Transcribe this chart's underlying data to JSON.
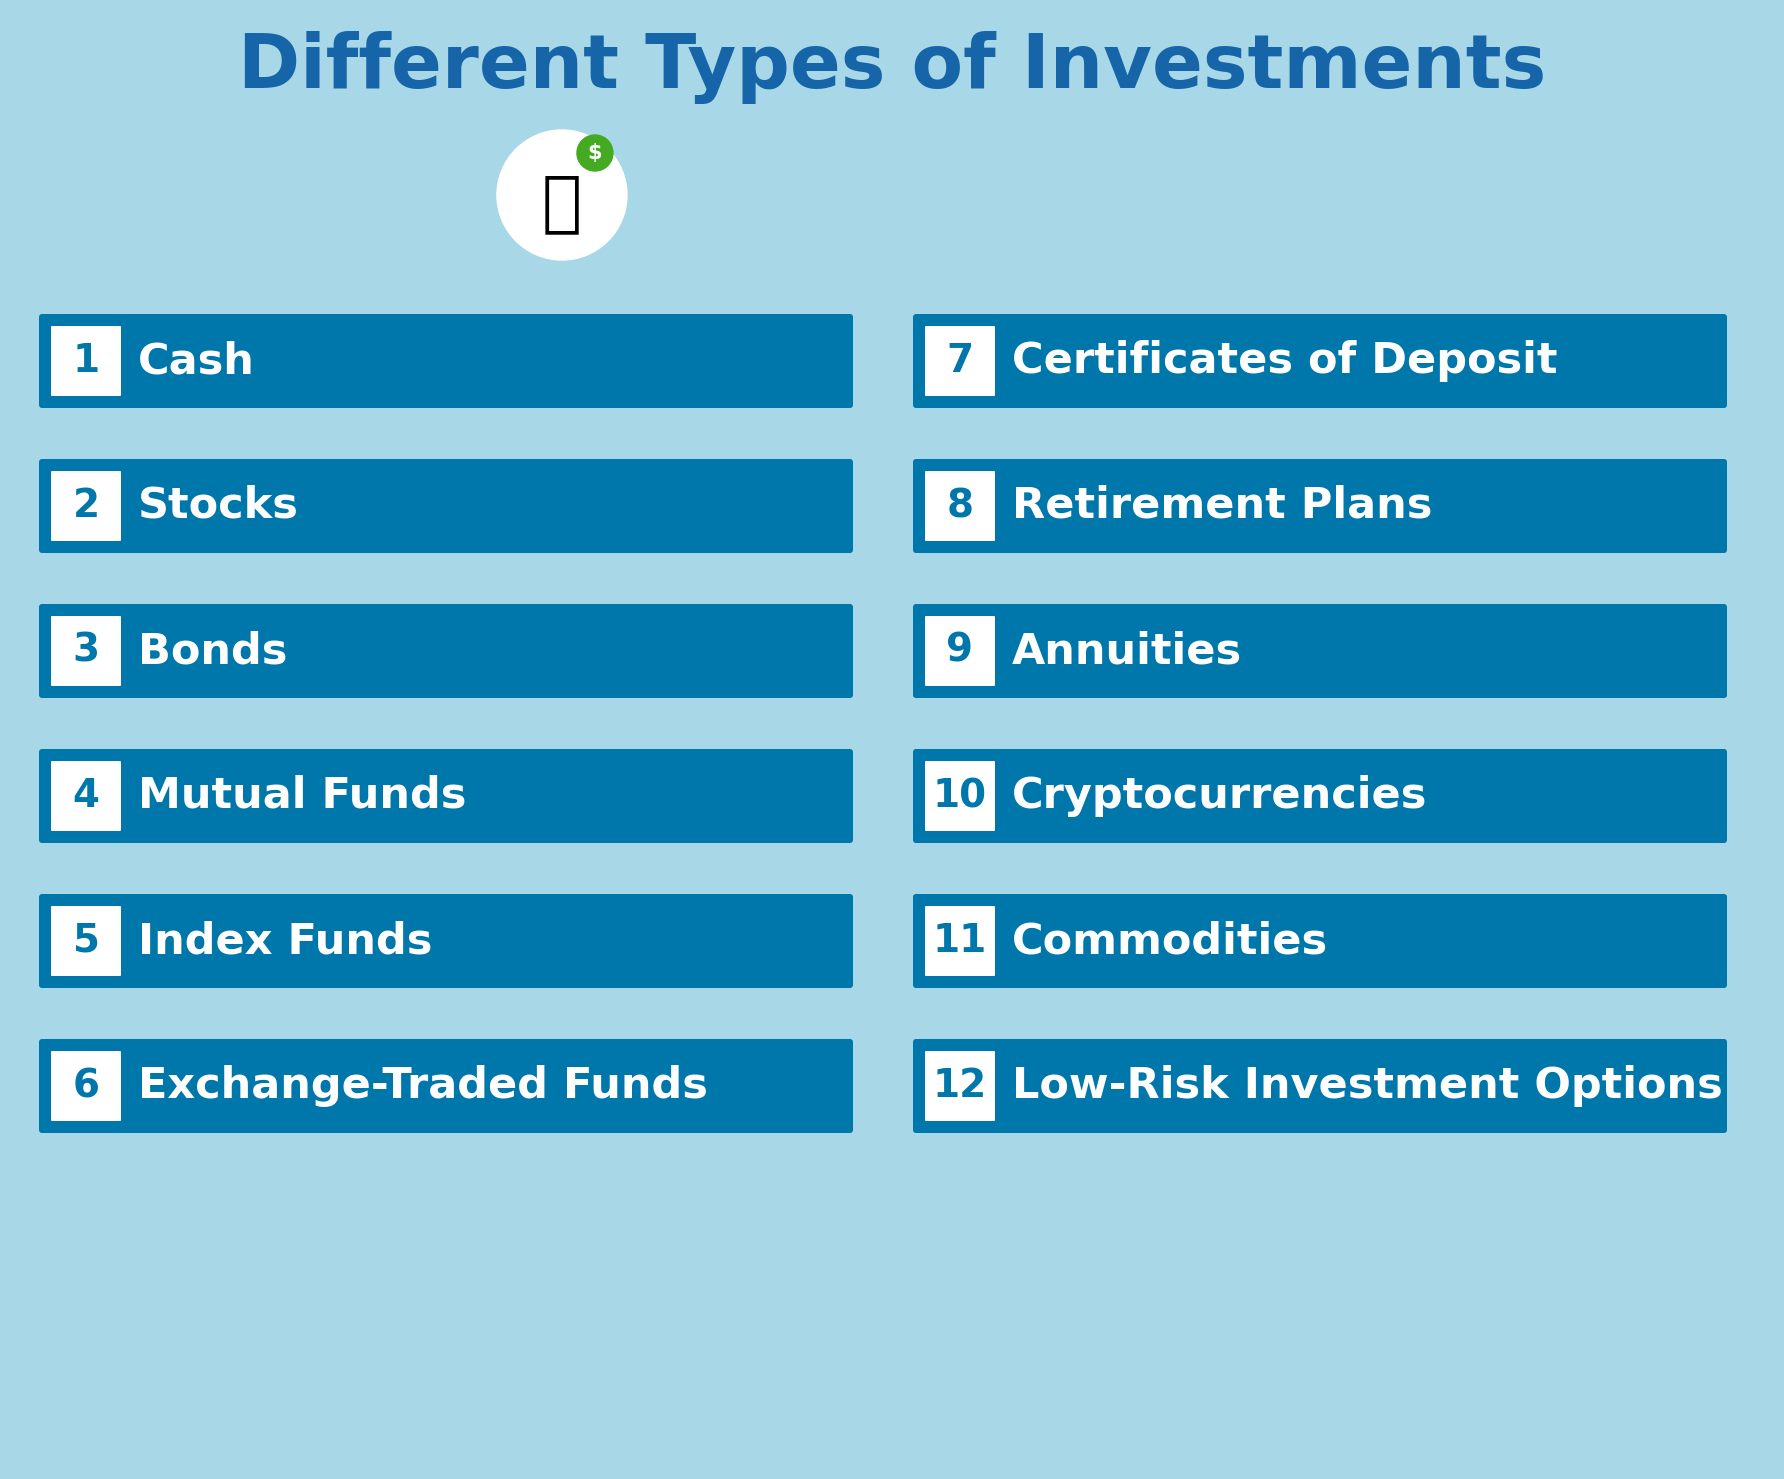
{
  "title": "Different Types of Investments",
  "title_color": "#1565A8",
  "background_color": "#A8D8E8",
  "bar_color": "#0077AA",
  "number_box_color": "#FFFFFF",
  "number_text_color": "#0077AA",
  "item_text_color": "#FFFFFF",
  "left_items": [
    {
      "num": "1",
      "label": "Cash"
    },
    {
      "num": "2",
      "label": "Stocks"
    },
    {
      "num": "3",
      "label": "Bonds"
    },
    {
      "num": "4",
      "label": "Mutual Funds"
    },
    {
      "num": "5",
      "label": "Index Funds"
    },
    {
      "num": "6",
      "label": "Exchange-Traded Funds"
    }
  ],
  "right_items": [
    {
      "num": "7",
      "label": "Certificates of Deposit"
    },
    {
      "num": "8",
      "label": "Retirement Plans"
    },
    {
      "num": "9",
      "label": "Annuities"
    },
    {
      "num": "10",
      "label": "Cryptocurrencies"
    },
    {
      "num": "11",
      "label": "Commodities"
    },
    {
      "num": "12",
      "label": "Low-Risk Investment Options"
    }
  ],
  "fig_width": 17.84,
  "fig_height": 14.79,
  "dpi": 100
}
